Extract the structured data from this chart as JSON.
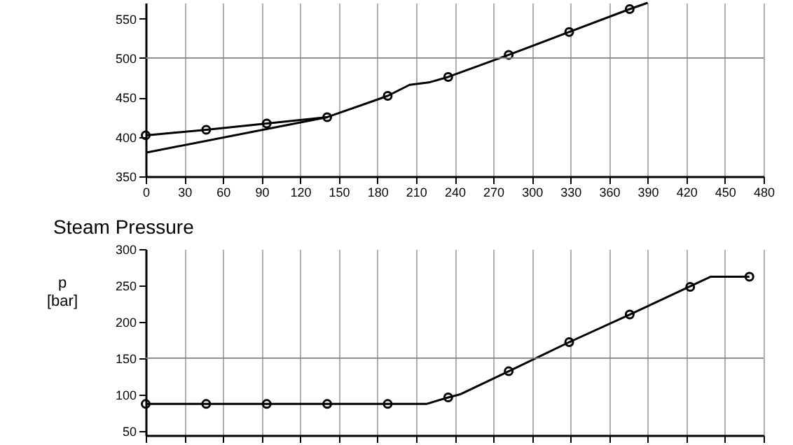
{
  "chart_data": [
    {
      "type": "line",
      "xlim": [
        0,
        480
      ],
      "xticks": [
        0,
        30,
        60,
        90,
        120,
        150,
        180,
        210,
        240,
        270,
        300,
        330,
        360,
        390,
        420,
        450,
        480
      ],
      "ylim": [
        350,
        570
      ],
      "yticks": [
        350,
        400,
        450,
        500,
        550
      ],
      "grid": "x",
      "ref_lines": [
        {
          "axis": "y",
          "value": 500,
          "color": "#808080"
        }
      ],
      "series": [
        {
          "type": "line",
          "marker": "none",
          "color": "#000000",
          "x": [
            0,
            47,
            94,
            141,
            188,
            205,
            220,
            235,
            282,
            329,
            376,
            390
          ],
          "values": [
            402,
            409,
            417,
            425,
            452,
            466,
            469,
            476,
            504,
            533,
            562,
            570
          ]
        },
        {
          "type": "line",
          "marker": "none",
          "color": "#000000",
          "x": [
            0,
            141
          ],
          "values": [
            380,
            425
          ]
        },
        {
          "type": "scatter",
          "marker": "circle",
          "color": "#000000",
          "x": [
            0,
            47,
            94,
            141,
            188,
            235,
            282,
            329,
            376
          ],
          "values": [
            402,
            409,
            417,
            425,
            452,
            476,
            504,
            533,
            562
          ]
        }
      ]
    },
    {
      "type": "line",
      "title": "Steam Pressure",
      "ylabel": "p [bar]",
      "xlim": [
        0,
        480
      ],
      "xticks": [
        {
          "value": 0,
          "label": null
        },
        {
          "value": 30,
          "label": null
        },
        {
          "value": 60,
          "label": null
        },
        {
          "value": 90,
          "label": null
        },
        {
          "value": 120,
          "label": null
        },
        {
          "value": 150,
          "label": null
        },
        {
          "value": 180,
          "label": null
        },
        {
          "value": 210,
          "label": null
        },
        {
          "value": 240,
          "label": null
        },
        {
          "value": 270,
          "label": null
        },
        {
          "value": 300,
          "label": null
        },
        {
          "value": 330,
          "label": null
        },
        {
          "value": 360,
          "label": null
        },
        {
          "value": 390,
          "label": null
        },
        {
          "value": 420,
          "label": null
        },
        {
          "value": 450,
          "label": null
        },
        {
          "value": 480,
          "label": null
        }
      ],
      "ylim": [
        44,
        300
      ],
      "yticks": [
        50,
        100,
        150,
        200,
        250,
        300
      ],
      "grid": "x",
      "tick_labels": "y",
      "ref_lines": [
        {
          "axis": "y",
          "value": 150,
          "color": "#808080"
        }
      ],
      "series": [
        {
          "type": "line",
          "marker": "none",
          "color": "#000000",
          "x": [
            0,
            47,
            94,
            141,
            188,
            218,
            235,
            244,
            282,
            329,
            376,
            439,
            469
          ],
          "values": [
            87,
            87,
            87,
            87,
            87,
            87,
            96,
            100,
            132,
            172,
            210,
            262,
            262
          ]
        },
        {
          "type": "scatter",
          "marker": "circle",
          "color": "#000000",
          "x": [
            0,
            47,
            94,
            141,
            188,
            235,
            282,
            329,
            376,
            423,
            469
          ],
          "values": [
            87,
            87,
            87,
            87,
            87,
            96,
            132,
            172,
            210,
            248,
            262
          ]
        }
      ]
    }
  ]
}
